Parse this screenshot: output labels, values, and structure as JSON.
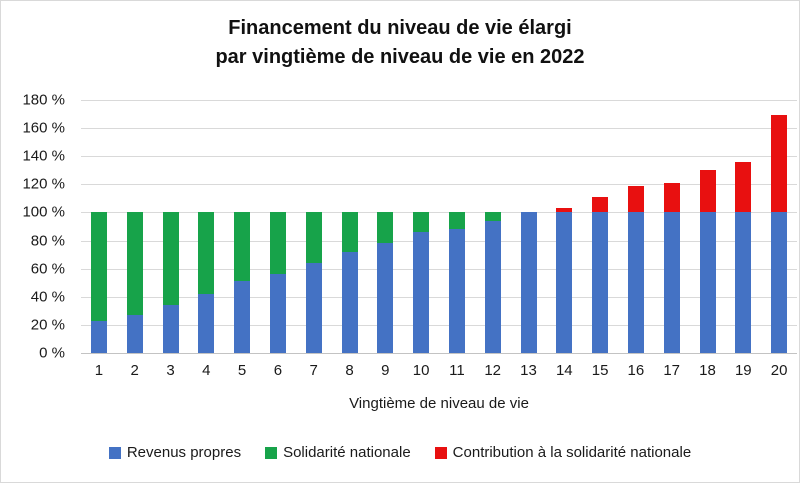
{
  "title": {
    "line1": "Financement du niveau de vie élargi",
    "line2": "par vingtième de niveau de vie en 2022"
  },
  "chart_data": {
    "type": "bar",
    "stacked": true,
    "title": "Financement du niveau de vie élargi par vingtième de niveau de vie en 2022",
    "categories": [
      "1",
      "2",
      "3",
      "4",
      "5",
      "6",
      "7",
      "8",
      "9",
      "10",
      "11",
      "12",
      "13",
      "14",
      "15",
      "16",
      "17",
      "18",
      "19",
      "20"
    ],
    "series": [
      {
        "name": "Revenus propres",
        "color": "#4472c4",
        "values": [
          23,
          27,
          34,
          42,
          51,
          56,
          64,
          72,
          78,
          86,
          88,
          94,
          100,
          100,
          100,
          100,
          100,
          100,
          100,
          100
        ]
      },
      {
        "name": "Solidarité nationale",
        "color": "#17a34a",
        "values": [
          77,
          73,
          66,
          58,
          49,
          44,
          36,
          28,
          22,
          14,
          12,
          6,
          0,
          0,
          0,
          0,
          0,
          0,
          0,
          0
        ]
      },
      {
        "name": "Contribution à la solidarité nationale",
        "color": "#e81010",
        "values": [
          0,
          0,
          0,
          0,
          0,
          0,
          0,
          0,
          0,
          0,
          0,
          0,
          0,
          3,
          11,
          19,
          21,
          30,
          36,
          69
        ]
      }
    ],
    "xlabel": "Vingtième de niveau de vie",
    "ylabel": "",
    "ylim": [
      0,
      180
    ],
    "ytick_step": 20,
    "ytick_suffix": " %",
    "grid": true,
    "legend_position": "bottom"
  },
  "colors": {
    "gridline": "#d9d9d9",
    "axis_line": "#c3c3c3",
    "text": "#1a1a1a",
    "background": "#ffffff"
  }
}
